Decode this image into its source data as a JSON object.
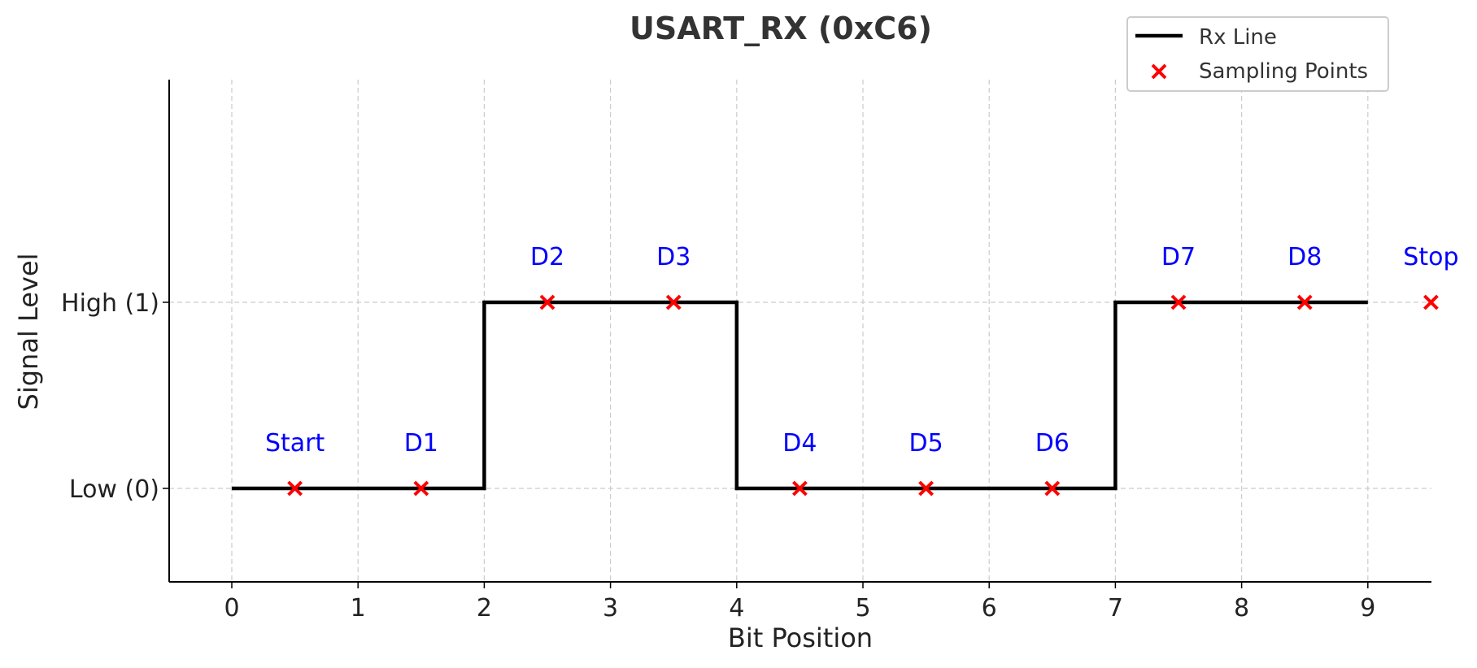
{
  "chart_data": {
    "type": "line",
    "title": "USART_RX (0xC6)",
    "xlabel": "Bit Position",
    "ylabel": "Signal Level",
    "xlim": [
      -0.5,
      9.5
    ],
    "ylim": [
      -0.5,
      2.2
    ],
    "x_ticks": [
      0,
      1,
      2,
      3,
      4,
      5,
      6,
      7,
      8,
      9
    ],
    "y_ticks": [
      {
        "value": 0,
        "label": "Low (0)"
      },
      {
        "value": 1,
        "label": "High (1)"
      }
    ],
    "grid": true,
    "legend_position": "top-right",
    "colors": {
      "line": "#000000",
      "markers": "#ff0000",
      "labels": "#0000ff",
      "grid": "#cccccc",
      "axis": "#000000",
      "text": "#222222"
    },
    "series": [
      {
        "name": "Rx Line",
        "kind": "step",
        "x": [
          0,
          2,
          2,
          4,
          4,
          7,
          7,
          9
        ],
        "y": [
          0,
          0,
          1,
          1,
          0,
          0,
          1,
          1
        ]
      },
      {
        "name": "Sampling Points",
        "kind": "scatter",
        "x": [
          0.5,
          1.5,
          2.5,
          3.5,
          4.5,
          5.5,
          6.5,
          7.5,
          8.5,
          9.5
        ],
        "y": [
          0,
          0,
          1,
          1,
          0,
          0,
          0,
          1,
          1,
          1
        ]
      }
    ],
    "annotations": [
      {
        "text": "Start",
        "x": 0.5,
        "y": 0
      },
      {
        "text": "D1",
        "x": 1.5,
        "y": 0
      },
      {
        "text": "D2",
        "x": 2.5,
        "y": 1
      },
      {
        "text": "D3",
        "x": 3.5,
        "y": 1
      },
      {
        "text": "D4",
        "x": 4.5,
        "y": 0
      },
      {
        "text": "D5",
        "x": 5.5,
        "y": 0
      },
      {
        "text": "D6",
        "x": 6.5,
        "y": 0
      },
      {
        "text": "D7",
        "x": 7.5,
        "y": 1
      },
      {
        "text": "D8",
        "x": 8.5,
        "y": 1
      },
      {
        "text": "Stop",
        "x": 9.5,
        "y": 1
      }
    ]
  }
}
